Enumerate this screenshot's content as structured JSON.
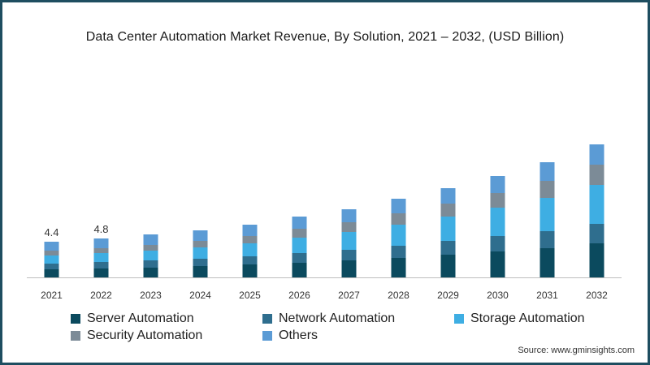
{
  "chart_data": {
    "type": "bar",
    "stacked": true,
    "title": "Data Center Automation Market Revenue, By Solution, 2021 – 2032, (USD Billion)",
    "xlabel": "",
    "ylabel": "",
    "categories": [
      "2021",
      "2022",
      "2023",
      "2024",
      "2025",
      "2026",
      "2027",
      "2028",
      "2029",
      "2030",
      "2031",
      "2032"
    ],
    "ylim": [
      0,
      24
    ],
    "series": [
      {
        "name": "Server Automation",
        "color": "#0b4a5e",
        "values": [
          1.0,
          1.1,
          1.2,
          1.4,
          1.6,
          1.8,
          2.1,
          2.4,
          2.8,
          3.2,
          3.6,
          4.2
        ]
      },
      {
        "name": "Network Automation",
        "color": "#2f6e8e",
        "values": [
          0.7,
          0.8,
          0.9,
          0.9,
          1.0,
          1.2,
          1.3,
          1.5,
          1.7,
          1.9,
          2.1,
          2.4
        ]
      },
      {
        "name": "Storage Automation",
        "color": "#3eaee3",
        "values": [
          1.0,
          1.1,
          1.2,
          1.4,
          1.6,
          1.9,
          2.2,
          2.6,
          3.0,
          3.5,
          4.1,
          4.8
        ]
      },
      {
        "name": "Security Automation",
        "color": "#7c8b97",
        "values": [
          0.6,
          0.6,
          0.7,
          0.8,
          0.9,
          1.1,
          1.2,
          1.4,
          1.6,
          1.8,
          2.1,
          2.5
        ]
      },
      {
        "name": "Others",
        "color": "#5b9bd5",
        "values": [
          1.1,
          1.2,
          1.3,
          1.3,
          1.4,
          1.5,
          1.6,
          1.8,
          1.9,
          2.1,
          2.3,
          2.5
        ]
      }
    ],
    "data_labels": {
      "2021": "4.4",
      "2022": "4.8"
    },
    "grid": false,
    "legend_position": "bottom"
  },
  "legend": {
    "items": [
      {
        "label": "Server Automation",
        "color": "#0b4a5e"
      },
      {
        "label": "Network Automation",
        "color": "#2f6e8e"
      },
      {
        "label": "Storage Automation",
        "color": "#3eaee3"
      },
      {
        "label": "Security Automation",
        "color": "#7c8b97"
      },
      {
        "label": "Others",
        "color": "#5b9bd5"
      }
    ]
  },
  "source": "Source: www.gminsights.com",
  "frame_color": "#1e4e60"
}
